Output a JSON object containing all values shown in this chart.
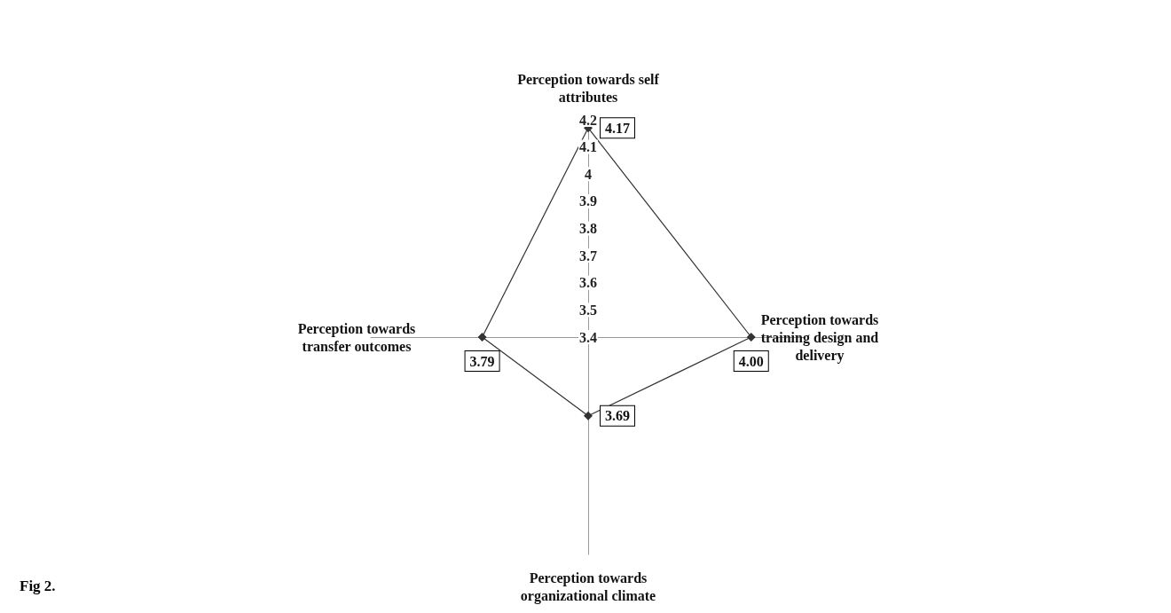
{
  "chart_data": {
    "type": "radar",
    "categories": [
      "Perception towards self attributes",
      "Perception towards training design and delivery",
      "Perception towards organizational climate",
      "Perception towards transfer outcomes"
    ],
    "series": [
      {
        "color": "#333333",
        "values": [
          4.17,
          4.0,
          3.69,
          3.79
        ]
      }
    ],
    "ylim": [
      3.4,
      4.2
    ],
    "yticks": [
      3.4,
      3.5,
      3.6,
      3.7,
      3.8,
      3.9,
      4,
      4.1,
      4.2
    ],
    "marker": "diamond",
    "value_labels": [
      "4.17",
      "4.00",
      "3.69",
      "3.79"
    ],
    "annotations": [
      "Fig 2."
    ]
  }
}
